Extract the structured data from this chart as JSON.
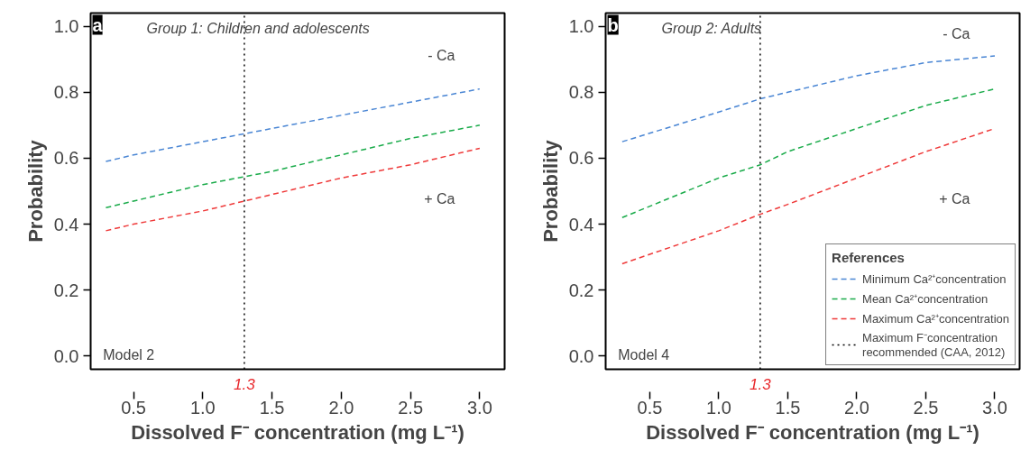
{
  "chart_data": [
    {
      "type": "line",
      "title": "Group 1: Children and adolescents",
      "xlabel": "Dissolved F⁻ concentration (mg L⁻¹)",
      "ylabel": "Probability",
      "x": [
        0.3,
        0.5,
        1.0,
        1.5,
        2.0,
        2.5,
        3.0
      ],
      "series": [
        {
          "color": "#4a86d4",
          "values": [
            0.59,
            0.61,
            0.65,
            0.69,
            0.73,
            0.77,
            0.81
          ]
        },
        {
          "color": "#1aab4a",
          "values": [
            0.45,
            0.47,
            0.52,
            0.56,
            0.61,
            0.66,
            0.7
          ]
        },
        {
          "color": "#ef3a3a",
          "values": [
            0.38,
            0.4,
            0.44,
            0.49,
            0.54,
            0.58,
            0.63
          ]
        }
      ],
      "line_style": "dashed",
      "legend": false,
      "grid": false,
      "xlim": [
        0.19,
        3.18
      ],
      "ylim": [
        -0.04,
        1.04
      ],
      "xticks": [
        {
          "value": 0.5,
          "label": "0.5"
        },
        {
          "value": 1.0,
          "label": "1.0"
        },
        {
          "value": 1.5,
          "label": "1.5"
        },
        {
          "value": 2.0,
          "label": "2.0"
        },
        {
          "value": 2.5,
          "label": "2.5"
        },
        {
          "value": 3.0,
          "label": "3.0"
        }
      ],
      "yticks": [
        {
          "value": 0,
          "label": "0.0"
        },
        {
          "value": 0.2,
          "label": "0.2"
        },
        {
          "value": 0.4,
          "label": "0.4"
        },
        {
          "value": 0.6,
          "label": "0.6"
        },
        {
          "value": 0.8,
          "label": "0.8"
        },
        {
          "value": 1.0,
          "label": "1.0"
        }
      ],
      "ref_lines": [
        {
          "axis": "x",
          "value": 1.3,
          "color": "#000000",
          "line_style": "dotted",
          "label": "1.3"
        }
      ],
      "annotations": [
        "a",
        "Model 2",
        "- Ca",
        "+ Ca"
      ]
    },
    {
      "type": "line",
      "title": "Group 2: Adults",
      "xlabel": "Dissolved F⁻ concentration (mg L⁻¹)",
      "ylabel": "Probability",
      "x": [
        0.3,
        1.0,
        1.3,
        1.5,
        2.0,
        2.5,
        3.0
      ],
      "series": [
        {
          "name": "Minimum Ca²⁺concentration",
          "color": "#4a86d4",
          "values": [
            0.65,
            0.74,
            0.78,
            0.8,
            0.85,
            0.89,
            0.91
          ]
        },
        {
          "name": "Mean Ca²⁺concentration",
          "color": "#1aab4a",
          "values": [
            0.42,
            0.54,
            0.58,
            0.62,
            0.69,
            0.76,
            0.81
          ]
        },
        {
          "name": "Maximum Ca²⁺concentration",
          "color": "#ef3a3a",
          "values": [
            0.28,
            0.38,
            0.43,
            0.46,
            0.54,
            0.62,
            0.69
          ]
        }
      ],
      "line_style": "dashed",
      "legend": "bottom right",
      "legend_title": "References",
      "grid": false,
      "xlim": [
        0.18,
        3.18
      ],
      "ylim": [
        -0.04,
        1.04
      ],
      "xticks": [
        {
          "value": 0.5,
          "label": "0.5"
        },
        {
          "value": 1.0,
          "label": "1.0"
        },
        {
          "value": 1.5,
          "label": "1.5"
        },
        {
          "value": 2.0,
          "label": "2.0"
        },
        {
          "value": 2.5,
          "label": "2.5"
        },
        {
          "value": 3.0,
          "label": "3.0"
        }
      ],
      "yticks": [
        {
          "value": 0,
          "label": "0.0"
        },
        {
          "value": 0.2,
          "label": "0.2"
        },
        {
          "value": 0.4,
          "label": "0.4"
        },
        {
          "value": 0.6,
          "label": "0.6"
        },
        {
          "value": 0.8,
          "label": "0.8"
        },
        {
          "value": 1.0,
          "label": "1.0"
        }
      ],
      "ref_lines": [
        {
          "axis": "x",
          "value": 1.3,
          "color": "#000000",
          "line_style": "dotted",
          "label": "1.3"
        }
      ],
      "annotations": [
        "b",
        "Model 4",
        "- Ca",
        "+ Ca",
        "Maximum F⁻concentration\nrecommended (CAA, 2012)"
      ]
    }
  ]
}
